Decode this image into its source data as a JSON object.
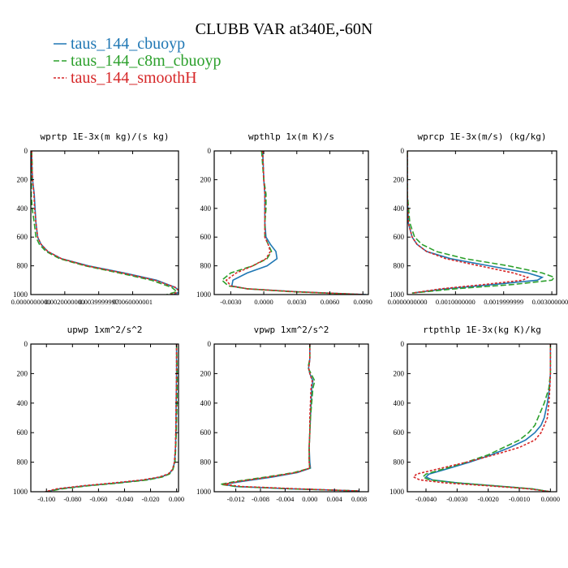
{
  "figure": {
    "title": "CLUBB VAR at340E,-60N",
    "legend": [
      {
        "label": "taus_144_cbuoyp",
        "color": "#1f77b4",
        "dash": "solid"
      },
      {
        "label": "taus_144_c8m_cbuoyp",
        "color": "#2ca02c",
        "dash": "longdash"
      },
      {
        "label": "taus_144_smoothH",
        "color": "#d62728",
        "dash": "shortdash"
      }
    ]
  },
  "chart_data": [
    {
      "type": "line",
      "title": "wprtp  1E-3x(m kg)/(s kg)",
      "xlim": [
        0,
        0.0087
      ],
      "xticks": [
        0,
        0.002,
        0.004,
        0.006
      ],
      "xticklabels": [
        "0.0000000000",
        "0.0020000000",
        "0.0039999997",
        "0.0060000001"
      ],
      "ylim": [
        1000,
        0
      ],
      "yticks": [
        0,
        200,
        400,
        600,
        800,
        1000
      ],
      "series": [
        {
          "y": [
            0,
            100,
            200,
            300,
            400,
            500,
            600,
            650,
            700,
            750,
            800,
            850,
            900,
            950,
            980,
            1000
          ],
          "x": [
            5e-05,
            6e-05,
            0.0001,
            0.0002,
            0.00025,
            0.0003,
            0.0004,
            0.0006,
            0.001,
            0.0018,
            0.0034,
            0.0055,
            0.0074,
            0.0085,
            0.0088,
            0.0084
          ]
        },
        {
          "y": [
            0,
            100,
            200,
            300,
            400,
            500,
            600,
            650,
            700,
            750,
            800,
            850,
            900,
            950,
            980,
            1000
          ],
          "x": [
            5e-05,
            8e-05,
            5e-05,
            2e-05,
            8e-05,
            0.0002,
            0.0003,
            0.0005,
            0.0009,
            0.0017,
            0.0032,
            0.0052,
            0.0071,
            0.0083,
            0.0086,
            0.008
          ]
        },
        {
          "y": [
            0,
            100,
            200,
            300,
            400,
            500,
            600,
            650,
            700,
            750,
            800,
            850,
            900,
            950,
            980,
            1000
          ],
          "x": [
            5e-05,
            6e-05,
            0.0001,
            0.00018,
            0.00022,
            0.0003,
            0.0004,
            0.0006,
            0.001,
            0.0018,
            0.0033,
            0.0054,
            0.0073,
            0.0085,
            0.0088,
            0.0082
          ]
        }
      ]
    },
    {
      "type": "line",
      "title": "wpthlp  1x(m K)/s",
      "xlim": [
        -0.0045,
        0.0095
      ],
      "xticks": [
        -0.003,
        0,
        0.003,
        0.006,
        0.009
      ],
      "xticklabels": [
        "-0.0030",
        "0.0000",
        "0.0030",
        "0.0060",
        "0.0090"
      ],
      "ylim": [
        1000,
        0
      ],
      "yticks": [
        0,
        200,
        400,
        600,
        800,
        1000
      ],
      "series": [
        {
          "y": [
            0,
            100,
            200,
            300,
            400,
            500,
            600,
            650,
            700,
            750,
            800,
            850,
            900,
            940,
            960,
            980,
            1000
          ],
          "x": [
            -0.0001,
            -5e-05,
            0,
            0.0001,
            0.0001,
            0.0001,
            0.0002,
            0.0006,
            0.0011,
            0.0012,
            0.0003,
            -0.0015,
            -0.0028,
            -0.0029,
            -0.0015,
            0.003,
            0.0093
          ]
        },
        {
          "y": [
            0,
            100,
            200,
            300,
            400,
            500,
            600,
            650,
            700,
            750,
            800,
            850,
            900,
            940,
            960,
            980,
            1000
          ],
          "x": [
            -0.0002,
            -0.0001,
            0,
            0.0002,
            0.0002,
            0.0001,
            0.0001,
            0.0004,
            0.0007,
            0.0003,
            -0.001,
            -0.003,
            -0.0038,
            -0.0032,
            -0.0015,
            0.0025,
            0.0088
          ]
        },
        {
          "y": [
            0,
            100,
            200,
            300,
            400,
            500,
            600,
            650,
            700,
            750,
            800,
            850,
            900,
            940,
            960,
            980,
            1000
          ],
          "x": [
            -0.0001,
            -5e-05,
            0,
            0.0001,
            0.0001,
            0.0001,
            0.0001,
            0.0004,
            0.0006,
            0.0002,
            -0.001,
            -0.0025,
            -0.0034,
            -0.003,
            -0.0015,
            0.0028,
            0.0091
          ]
        }
      ]
    },
    {
      "type": "line",
      "title": "wprcp  1E-3x(m/s) (kg/kg)",
      "xlim": [
        0,
        0.0031
      ],
      "xticks": [
        0,
        0.001,
        0.002,
        0.003
      ],
      "xticklabels": [
        "0.0000000000",
        "0.0010000000",
        "0.0019999999",
        "0.0030000000"
      ],
      "ylim": [
        1000,
        0
      ],
      "yticks": [
        0,
        200,
        400,
        600,
        800,
        1000
      ],
      "series": [
        {
          "y": [
            0,
            300,
            500,
            600,
            650,
            700,
            750,
            800,
            850,
            880,
            900,
            930,
            960,
            990
          ],
          "x": [
            0,
            0,
            2e-05,
            0.0001,
            0.0002,
            0.0004,
            0.0009,
            0.0017,
            0.0025,
            0.0028,
            0.0027,
            0.0018,
            0.0008,
            0.0001
          ]
        },
        {
          "y": [
            0,
            300,
            500,
            600,
            650,
            700,
            750,
            800,
            850,
            880,
            900,
            930,
            960,
            990
          ],
          "x": [
            0,
            0,
            5e-05,
            0.00015,
            0.0003,
            0.0006,
            0.0012,
            0.0021,
            0.0028,
            0.00305,
            0.003,
            0.0022,
            0.001,
            0.0001
          ]
        },
        {
          "y": [
            0,
            300,
            500,
            600,
            650,
            700,
            750,
            800,
            850,
            880,
            900,
            930,
            960,
            990
          ],
          "x": [
            0,
            0,
            2e-05,
            0.0001,
            0.0002,
            0.0004,
            0.0008,
            0.0015,
            0.0022,
            0.0025,
            0.0024,
            0.0016,
            0.0007,
            0.0001
          ]
        }
      ]
    },
    {
      "type": "line",
      "title": "upwp  1xm^2/s^2",
      "xlim": [
        -0.112,
        0.0015
      ],
      "xticks": [
        -0.1,
        -0.08,
        -0.06,
        -0.04,
        -0.02,
        0
      ],
      "xticklabels": [
        "-0.100",
        "-0.080",
        "-0.060",
        "-0.040",
        "-0.020",
        "0.000"
      ],
      "ylim": [
        1000,
        0
      ],
      "yticks": [
        0,
        200,
        400,
        600,
        800,
        1000
      ],
      "series": [
        {
          "y": [
            0,
            200,
            400,
            600,
            700,
            800,
            850,
            880,
            900,
            920,
            940,
            960,
            980,
            1000
          ],
          "x": [
            0,
            0,
            -0.0003,
            -0.0005,
            -0.0008,
            -0.0015,
            -0.003,
            -0.006,
            -0.012,
            -0.024,
            -0.045,
            -0.07,
            -0.09,
            -0.1
          ]
        },
        {
          "y": [
            0,
            200,
            400,
            600,
            700,
            800,
            850,
            880,
            900,
            920,
            940,
            960,
            980,
            1000
          ],
          "x": [
            0,
            0.0005,
            0.0003,
            -0.0002,
            -0.0006,
            -0.0012,
            -0.0028,
            -0.0055,
            -0.011,
            -0.022,
            -0.043,
            -0.068,
            -0.088,
            -0.1
          ]
        },
        {
          "y": [
            0,
            200,
            400,
            600,
            700,
            800,
            850,
            880,
            900,
            920,
            940,
            960,
            980,
            1000
          ],
          "x": [
            0,
            0,
            -0.0003,
            -0.0006,
            -0.0009,
            -0.0017,
            -0.0032,
            -0.0065,
            -0.013,
            -0.026,
            -0.048,
            -0.072,
            -0.092,
            -0.101
          ]
        }
      ]
    },
    {
      "type": "line",
      "title": "vpwp  1xm^2/s^2",
      "xlim": [
        -0.0155,
        0.0095
      ],
      "xticks": [
        -0.012,
        -0.008,
        -0.004,
        0,
        0.004,
        0.008
      ],
      "xticklabels": [
        "-0.012",
        "-0.008",
        "-0.004",
        "0.000",
        "0.004",
        "0.008"
      ],
      "ylim": [
        1000,
        0
      ],
      "yticks": [
        0,
        200,
        400,
        600,
        800,
        1000
      ],
      "series": [
        {
          "y": [
            0,
            100,
            140,
            160,
            200,
            250,
            300,
            400,
            500,
            600,
            700,
            800,
            840,
            870,
            900,
            930,
            950,
            965,
            980,
            995
          ],
          "x": [
            0,
            0,
            -0.0001,
            -0.0002,
            0,
            0.0005,
            0.0003,
            0.0002,
            0.0001,
            0,
            -0.0001,
            0,
            0.0001,
            -0.002,
            -0.006,
            -0.011,
            -0.014,
            -0.012,
            -0.003,
            0.008
          ]
        },
        {
          "y": [
            0,
            100,
            140,
            160,
            200,
            250,
            300,
            400,
            500,
            600,
            700,
            800,
            840,
            870,
            900,
            930,
            950,
            965,
            980,
            995
          ],
          "x": [
            0,
            0,
            -0.0002,
            -0.0003,
            0.0002,
            0.0008,
            0.0005,
            0.0003,
            0.0001,
            0,
            -0.0001,
            -0.0001,
            0,
            -0.0025,
            -0.007,
            -0.012,
            -0.0145,
            -0.012,
            -0.003,
            0.008
          ]
        },
        {
          "y": [
            0,
            100,
            140,
            160,
            200,
            250,
            300,
            400,
            500,
            600,
            700,
            800,
            840,
            870,
            900,
            930,
            950,
            965,
            980,
            995
          ],
          "x": [
            0,
            0,
            -0.0001,
            -0.0002,
            0,
            0.0004,
            0.0002,
            0.0001,
            0,
            0,
            -0.0001,
            -0.0001,
            0,
            -0.0022,
            -0.0065,
            -0.0115,
            -0.014,
            -0.011,
            -0.002,
            0.008
          ]
        }
      ]
    },
    {
      "type": "line",
      "title": "rtpthlp  1E-3x(kg K)/kg",
      "xlim": [
        -0.0046,
        0.0002
      ],
      "xticks": [
        -0.004,
        -0.003,
        -0.002,
        -0.001,
        0
      ],
      "xticklabels": [
        "-0.0040",
        "-0.0030",
        "-0.0020",
        "-0.0010",
        "0.0000"
      ],
      "ylim": [
        1000,
        0
      ],
      "yticks": [
        0,
        200,
        400,
        600,
        800,
        1000
      ],
      "series": [
        {
          "y": [
            0,
            200,
            300,
            400,
            500,
            550,
            600,
            650,
            700,
            750,
            800,
            850,
            880,
            900,
            920,
            940,
            960,
            980,
            1000
          ],
          "x": [
            0,
            0,
            -3e-05,
            -0.0001,
            -0.0002,
            -0.0003,
            -0.0005,
            -0.0008,
            -0.0013,
            -0.0019,
            -0.0026,
            -0.0034,
            -0.0039,
            -0.004,
            -0.0038,
            -0.003,
            -0.0018,
            -0.0006,
            0
          ]
        },
        {
          "y": [
            0,
            200,
            300,
            400,
            500,
            550,
            600,
            650,
            700,
            750,
            800,
            850,
            880,
            900,
            920,
            940,
            960,
            980,
            1000
          ],
          "x": [
            0,
            0,
            -5e-05,
            -0.0002,
            -0.0004,
            -0.0005,
            -0.0007,
            -0.001,
            -0.0015,
            -0.002,
            -0.0027,
            -0.0035,
            -0.004,
            -0.0041,
            -0.0039,
            -0.003,
            -0.0018,
            -0.0006,
            0
          ]
        },
        {
          "y": [
            0,
            200,
            300,
            400,
            500,
            550,
            600,
            650,
            700,
            750,
            800,
            850,
            880,
            900,
            920,
            940,
            960,
            980,
            1000
          ],
          "x": [
            0,
            0,
            -2e-05,
            -5e-05,
            -0.0001,
            -0.0002,
            -0.0003,
            -0.0005,
            -0.001,
            -0.0018,
            -0.0027,
            -0.0037,
            -0.0043,
            -0.0044,
            -0.0042,
            -0.0034,
            -0.002,
            -0.0007,
            0
          ]
        }
      ]
    }
  ]
}
